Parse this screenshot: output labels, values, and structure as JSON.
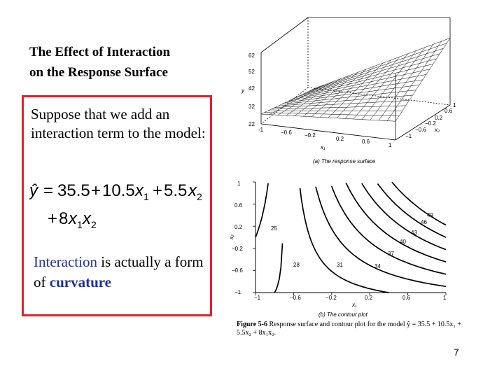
{
  "slide": {
    "title_line1": "The Effect of Interaction",
    "title_line2": "on the Response Surface",
    "intro": "Suppose that we add an interaction term to the model:",
    "note_keyword1": "Interaction",
    "note_middle": " is actually a form of ",
    "note_keyword2": "curvature",
    "page_number": "7",
    "accent_color": "#e4212a",
    "keyword_color": "#1f2f9e"
  },
  "equation": {
    "lhs": "ŷ",
    "eq": "=",
    "t0": "35.5",
    "plus": "+",
    "c1": "10.5",
    "c2": "5.5",
    "c3": "8",
    "x": "x",
    "s1": "1",
    "s2": "2"
  },
  "figure": {
    "caption_fig": "Figure 5-6",
    "caption_text": "Response surface and contour plot for the model ŷ = 35.5 + 10.5x₁ + 5.5x₂ + 8x₁x₂.",
    "surface_caption": "(a) The response surface",
    "contour_caption": "(b) The contour plot",
    "y_label": "y",
    "x1_label": "x₁",
    "x2_label": "x₂",
    "z_ticks": [
      "62",
      "52",
      "42",
      "32",
      "22"
    ],
    "x1_ticks_surface": [
      "-1",
      "−0.6",
      "−0.2",
      "0.2",
      "0.6",
      "1"
    ],
    "x2_ticks_surface": [
      "1",
      "0.6",
      "0.2",
      "−0.2",
      "−0.6",
      "−1"
    ],
    "contour_y_ticks": [
      "1",
      "0.6",
      "0.2",
      "−0.2",
      "−0.6",
      "−1"
    ],
    "contour_x_ticks": [
      "−1",
      "−0.6",
      "−0.2",
      "0.2",
      "0.6",
      "1"
    ],
    "contour_levels": [
      "25",
      "28",
      "31",
      "34",
      "37",
      "40",
      "43",
      "46",
      "49"
    ]
  }
}
